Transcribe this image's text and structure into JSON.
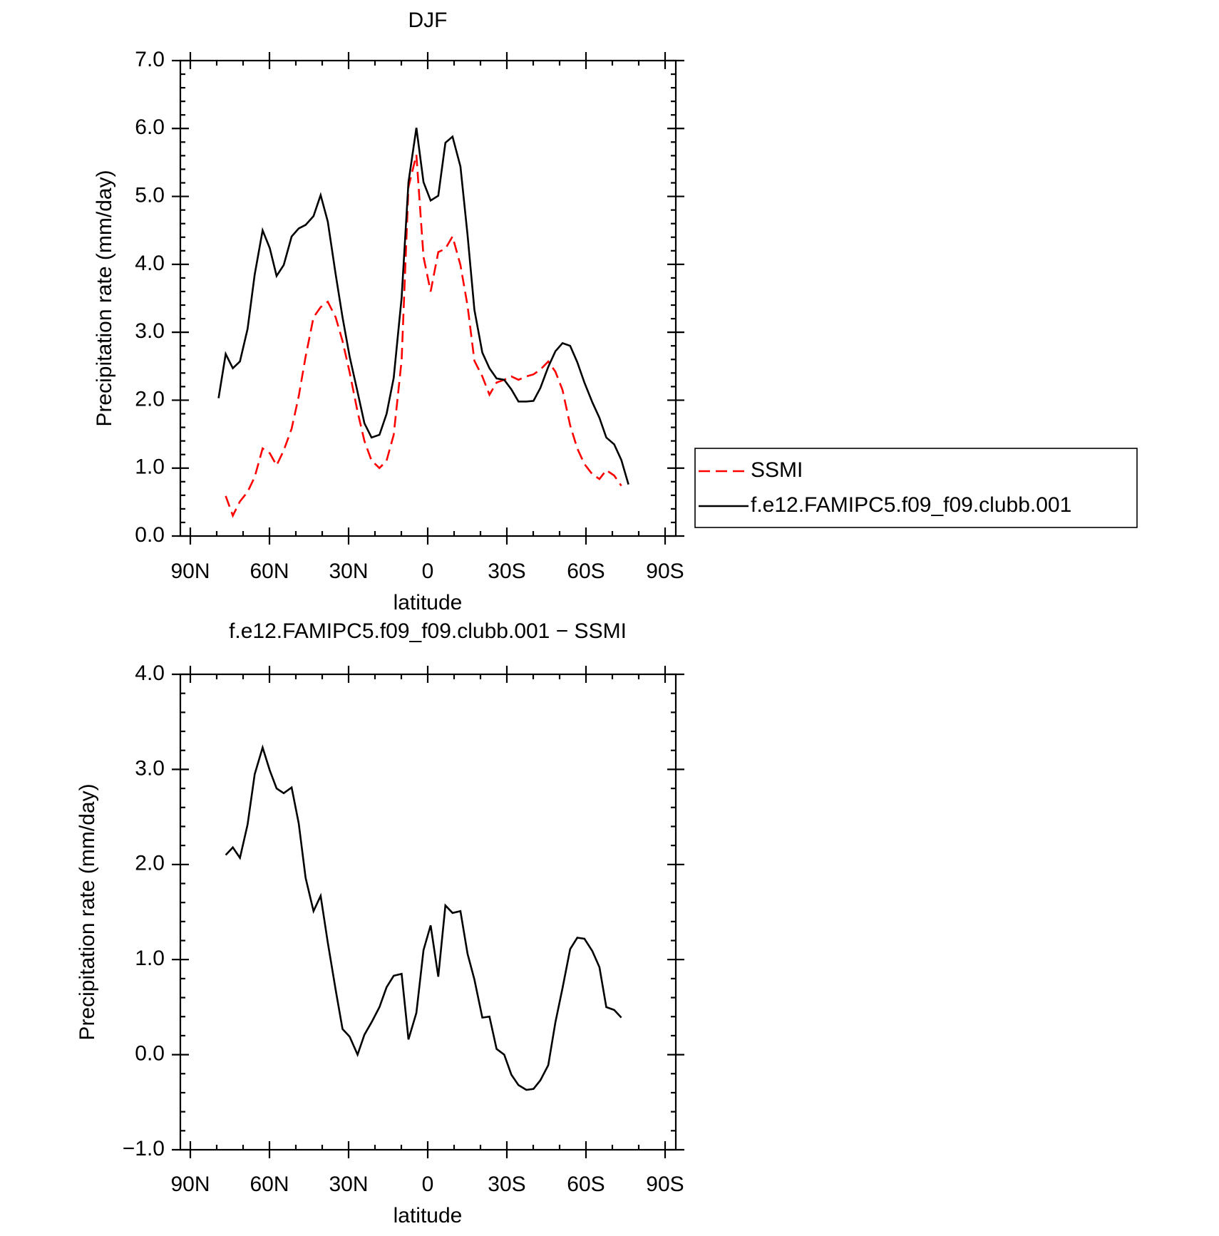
{
  "chart_data": [
    {
      "type": "line",
      "title": "DJF",
      "xlabel": "latitude",
      "ylabel": "Precipitation rate (mm/day)",
      "x": [
        79.3,
        76.6,
        73.9,
        71.2,
        68.3,
        65.6,
        62.6,
        59.9,
        57.3,
        54.6,
        51.6,
        48.9,
        46.3,
        43.3,
        40.6,
        37.9,
        34.9,
        32.3,
        29.6,
        26.6,
        24.0,
        21.3,
        18.3,
        15.6,
        12.9,
        9.9,
        7.3,
        4.3,
        1.6,
        -1.1,
        -4.0,
        -6.7,
        -9.4,
        -12.4,
        -15.1,
        -17.7,
        -20.7,
        -23.4,
        -26.1,
        -29.0,
        -31.7,
        -34.4,
        -37.4,
        -40.1,
        -42.7,
        -45.7,
        -48.4,
        -51.1,
        -54.0,
        -56.7,
        -59.4,
        -62.4,
        -65.1,
        -67.7,
        -70.7,
        -73.4,
        -76.1
      ],
      "series": [
        {
          "name": "SSMI",
          "color": "#ff0000",
          "dash": true,
          "values": [
            null,
            0.59,
            0.3,
            0.51,
            0.65,
            0.87,
            1.29,
            1.22,
            1.04,
            1.26,
            1.58,
            2.06,
            2.64,
            3.22,
            3.37,
            3.45,
            3.22,
            2.87,
            2.41,
            1.83,
            1.4,
            1.11,
            1.0,
            1.11,
            1.49,
            2.59,
            5.14,
            5.61,
            4.11,
            3.6,
            4.18,
            4.23,
            4.41,
            3.99,
            3.39,
            2.58,
            2.35,
            2.08,
            2.26,
            2.3,
            2.35,
            2.3,
            2.35,
            2.38,
            2.45,
            2.57,
            2.42,
            2.15,
            1.63,
            1.29,
            1.06,
            0.91,
            0.84,
            0.97,
            0.89,
            0.74,
            null
          ]
        },
        {
          "name": "f.e12.FAMIPC5.f09_f09.clubb.001",
          "color": "#000000",
          "dash": false,
          "values": [
            2.03,
            2.68,
            2.47,
            2.57,
            3.05,
            3.85,
            4.5,
            4.24,
            3.83,
            3.99,
            4.41,
            4.53,
            4.58,
            4.71,
            5.02,
            4.63,
            3.85,
            3.22,
            2.64,
            2.12,
            1.66,
            1.45,
            1.49,
            1.8,
            2.33,
            3.51,
            5.21,
            6.01,
            5.21,
            4.94,
            5.01,
            5.79,
            5.88,
            5.44,
            4.43,
            3.33,
            2.7,
            2.47,
            2.32,
            2.3,
            2.16,
            1.98,
            1.98,
            1.99,
            2.18,
            2.49,
            2.72,
            2.84,
            2.8,
            2.56,
            2.26,
            1.97,
            1.74,
            1.45,
            1.35,
            1.12,
            0.76
          ]
        }
      ],
      "xlim": [
        90,
        -90
      ],
      "xticks": [
        {
          "value": 90,
          "label": "90N"
        },
        {
          "value": 60,
          "label": "60N"
        },
        {
          "value": 30,
          "label": "30N"
        },
        0,
        {
          "value": -30,
          "label": "30S"
        },
        {
          "value": -60,
          "label": "60S"
        },
        {
          "value": -90,
          "label": "90S"
        }
      ],
      "ylim": [
        0,
        7
      ],
      "yticks": [
        {
          "value": 0,
          "label": "0.0"
        },
        {
          "value": 1,
          "label": "1.0"
        },
        {
          "value": 2,
          "label": "2.0"
        },
        {
          "value": 3,
          "label": "3.0"
        },
        {
          "value": 4,
          "label": "4.0"
        },
        {
          "value": 5,
          "label": "5.0"
        },
        {
          "value": 6,
          "label": "6.0"
        },
        {
          "value": 7,
          "label": "7.0"
        }
      ],
      "legend": "right"
    },
    {
      "type": "line",
      "title": "f.e12.FAMIPC5.f09_f09.clubb.001 − SSMI",
      "xlabel": "latitude",
      "ylabel": "Precipitation rate (mm/day)",
      "x": [
        76.6,
        73.9,
        71.2,
        68.3,
        65.6,
        62.6,
        59.9,
        57.3,
        54.6,
        51.6,
        48.9,
        46.3,
        43.3,
        40.6,
        37.9,
        34.9,
        32.3,
        29.6,
        26.6,
        24.0,
        21.3,
        18.3,
        15.6,
        12.9,
        9.9,
        7.3,
        4.3,
        1.6,
        -1.1,
        -4.0,
        -6.7,
        -9.4,
        -12.4,
        -15.1,
        -17.7,
        -20.7,
        -23.4,
        -26.1,
        -29.0,
        -31.7,
        -34.4,
        -37.4,
        -40.1,
        -42.7,
        -45.7,
        -48.4,
        -51.1,
        -54.0,
        -56.7,
        -59.4,
        -62.4,
        -65.1,
        -67.7,
        -70.7,
        -73.4
      ],
      "series": [
        {
          "color": "#000000",
          "dash": false,
          "values": [
            2.1,
            2.18,
            2.07,
            2.42,
            2.95,
            3.23,
            2.99,
            2.8,
            2.75,
            2.81,
            2.43,
            1.86,
            1.51,
            1.67,
            1.18,
            0.68,
            0.27,
            0.19,
            0.0,
            0.21,
            0.34,
            0.5,
            0.71,
            0.83,
            0.85,
            0.16,
            0.44,
            1.1,
            1.36,
            0.82,
            1.57,
            1.49,
            1.51,
            1.06,
            0.79,
            0.39,
            0.4,
            0.06,
            0.0,
            -0.21,
            -0.32,
            -0.37,
            -0.36,
            -0.27,
            -0.11,
            0.34,
            0.7,
            1.11,
            1.23,
            1.22,
            1.09,
            0.92,
            0.5,
            0.47,
            0.39
          ]
        }
      ],
      "xlim": [
        90,
        -90
      ],
      "xticks": [
        {
          "value": 90,
          "label": "90N"
        },
        {
          "value": 60,
          "label": "60N"
        },
        {
          "value": 30,
          "label": "30N"
        },
        0,
        {
          "value": -30,
          "label": "30S"
        },
        {
          "value": -60,
          "label": "60S"
        },
        {
          "value": -90,
          "label": "90S"
        }
      ],
      "ylim": [
        -1,
        4
      ],
      "yticks": [
        {
          "value": -1,
          "label": "−1.0"
        },
        {
          "value": 0,
          "label": "0.0"
        },
        {
          "value": 1,
          "label": "1.0"
        },
        {
          "value": 2,
          "label": "2.0"
        },
        {
          "value": 3,
          "label": "3.0"
        },
        {
          "value": 4,
          "label": "4.0"
        }
      ]
    }
  ]
}
